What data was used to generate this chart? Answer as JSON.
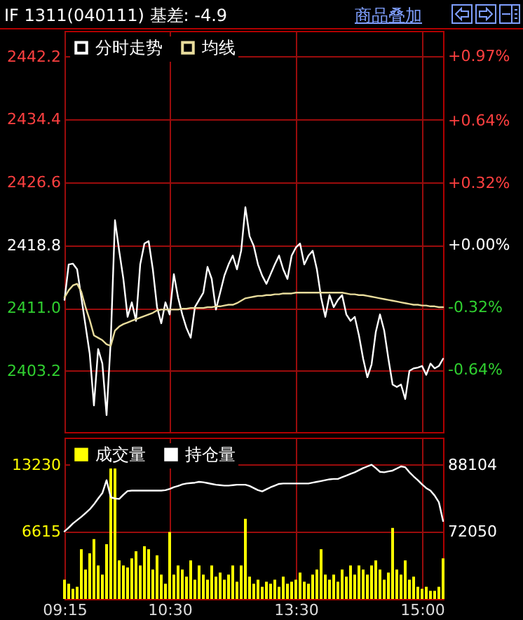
{
  "chart_data": [
    {
      "type": "line",
      "title": "IF 1311(040111) 基差: -4.9",
      "annotations": [
        "商品叠加"
      ],
      "legend": "top left",
      "tick_labels": "y",
      "grid": true,
      "categories": [
        null,
        null,
        null,
        null,
        null,
        null,
        null,
        null,
        null,
        null,
        null,
        null,
        null,
        null,
        null,
        null,
        null,
        null,
        null,
        null,
        null,
        null,
        null,
        null,
        null,
        null,
        null,
        null,
        null,
        null,
        null,
        null,
        null,
        null,
        null,
        null,
        null,
        null,
        null,
        null,
        null,
        null,
        null,
        null,
        null,
        null,
        null,
        null,
        null,
        null,
        null,
        null,
        null,
        null,
        null,
        null,
        null,
        null,
        null,
        null,
        null,
        null,
        null,
        null,
        null,
        null,
        null,
        null,
        null,
        null,
        null,
        null,
        null,
        null,
        null,
        null,
        null,
        null,
        null,
        null,
        null,
        null,
        null,
        null,
        null,
        null,
        null,
        null,
        null,
        null,
        null
      ],
      "ylim": [
        2395.6,
        2445.4
      ],
      "yticks": [
        2442.2,
        2434.4,
        2426.6,
        2418.8,
        {
          "value": 2411,
          "label": "2411.0"
        },
        2403.2
      ],
      "y2lim": [
        -0.96,
        1.1
      ],
      "y2ticks": [
        {
          "value": 0.97,
          "label": "+0.97%"
        },
        {
          "value": 0.64,
          "label": "+0.64%"
        },
        {
          "value": 0.32,
          "label": "+0.32%"
        },
        {
          "value": 0,
          "label": "+0.00%"
        },
        {
          "value": -0.32,
          "label": "-0.32%"
        },
        {
          "value": -0.64,
          "label": "-0.64%"
        }
      ],
      "series": [
        {
          "name": "分时走势",
          "color": "#ffffff",
          "values": [
            2412.0,
            2416.4,
            2416.5,
            2415.8,
            2412.3,
            2408.8,
            2405.3,
            2398.9,
            2405.9,
            2404.1,
            2397.7,
            2407.0,
            2421.9,
            2418.1,
            2414.6,
            2409.9,
            2411.7,
            2409.4,
            2416.4,
            2419.0,
            2419.3,
            2415.8,
            2411.1,
            2409.1,
            2411.7,
            2410.2,
            2415.2,
            2412.3,
            2410.2,
            2408.5,
            2407.3,
            2411.1,
            2412.0,
            2412.9,
            2416.1,
            2414.6,
            2410.8,
            2412.9,
            2415.0,
            2416.4,
            2417.5,
            2415.8,
            2418.1,
            2423.5,
            2419.9,
            2418.7,
            2416.4,
            2415.0,
            2414.0,
            2415.2,
            2416.4,
            2417.5,
            2415.8,
            2414.6,
            2417.5,
            2418.5,
            2419.0,
            2416.4,
            2417.5,
            2418.1,
            2415.8,
            2412.3,
            2409.9,
            2412.6,
            2411.1,
            2412.0,
            2412.6,
            2410.2,
            2409.4,
            2409.9,
            2407.6,
            2404.7,
            2402.4,
            2404.0,
            2408.0,
            2410.2,
            2408.2,
            2404.7,
            2401.5,
            2401.2,
            2401.5,
            2399.7,
            2403.2,
            2403.5,
            2403.6,
            2403.8,
            2402.7,
            2404.1,
            2403.5,
            2403.8,
            2404.7
          ]
        },
        {
          "name": "均线",
          "color": "#e8dc9c",
          "values": [
            2412.3,
            2413.2,
            2413.8,
            2414.0,
            2413.0,
            2411.1,
            2409.5,
            2407.6,
            2407.3,
            2407.0,
            2406.5,
            2406.3,
            2408.2,
            2408.7,
            2409.0,
            2409.2,
            2409.4,
            2409.6,
            2409.8,
            2410.0,
            2410.2,
            2410.4,
            2410.7,
            2410.8,
            2410.8,
            2410.8,
            2410.8,
            2410.8,
            2410.9,
            2410.9,
            2411.0,
            2411.0,
            2411.0,
            2411.0,
            2411.1,
            2411.1,
            2411.2,
            2411.2,
            2411.3,
            2411.4,
            2411.4,
            2411.6,
            2411.9,
            2412.2,
            2412.3,
            2412.4,
            2412.5,
            2412.5,
            2412.6,
            2412.6,
            2412.7,
            2412.7,
            2412.8,
            2412.8,
            2412.8,
            2412.9,
            2412.9,
            2412.9,
            2412.9,
            2412.9,
            2412.9,
            2412.9,
            2412.9,
            2412.9,
            2412.9,
            2412.9,
            2412.9,
            2412.8,
            2412.7,
            2412.7,
            2412.6,
            2412.6,
            2412.5,
            2412.4,
            2412.3,
            2412.2,
            2412.1,
            2412.0,
            2411.9,
            2411.8,
            2411.7,
            2411.6,
            2411.5,
            2411.4,
            2411.4,
            2411.3,
            2411.3,
            2411.2,
            2411.2,
            2411.1,
            2411.1
          ]
        }
      ]
    },
    {
      "type": "bar",
      "legend": "top left",
      "grid": true,
      "categories": [
        "09:15",
        null,
        null,
        null,
        null,
        null,
        null,
        null,
        null,
        null,
        null,
        null,
        null,
        null,
        null,
        null,
        null,
        null,
        null,
        null,
        null,
        null,
        null,
        null,
        null,
        "10:30",
        null,
        null,
        null,
        null,
        null,
        null,
        null,
        null,
        null,
        null,
        null,
        null,
        null,
        null,
        null,
        null,
        null,
        null,
        null,
        null,
        null,
        null,
        null,
        null,
        null,
        null,
        null,
        null,
        null,
        "13:30",
        null,
        null,
        null,
        null,
        null,
        null,
        null,
        null,
        null,
        null,
        null,
        null,
        null,
        null,
        null,
        null,
        null,
        null,
        null,
        null,
        null,
        null,
        null,
        null,
        null,
        null,
        null,
        null,
        null,
        "15:00",
        null,
        null,
        null,
        null,
        null
      ],
      "ylim": [
        0,
        15900
      ],
      "yticks": [
        6615,
        13230
      ],
      "y2lim": [
        55900,
        94600
      ],
      "y2ticks": [
        72050,
        88104
      ],
      "series": [
        {
          "name": "成交量",
          "type": "bar",
          "color": "#ffff00",
          "values": [
            1900,
            1500,
            1000,
            1200,
            4900,
            2900,
            4500,
            5900,
            3300,
            2400,
            5400,
            13000,
            13000,
            3800,
            3300,
            3100,
            4000,
            4700,
            3300,
            5200,
            4900,
            2900,
            4300,
            2400,
            1500,
            6600,
            2400,
            3300,
            2900,
            2200,
            3800,
            1900,
            3300,
            2400,
            1900,
            3300,
            2200,
            2600,
            1900,
            2400,
            3300,
            1700,
            3300,
            7900,
            2200,
            1500,
            1900,
            1200,
            1700,
            1500,
            1900,
            1200,
            2200,
            1500,
            1700,
            1900,
            2600,
            1700,
            1500,
            2400,
            2900,
            4900,
            2400,
            1900,
            2400,
            1700,
            2900,
            2200,
            3300,
            2400,
            3300,
            2900,
            2400,
            3300,
            3800,
            2900,
            1900,
            2600,
            7000,
            2900,
            2400,
            3800,
            1900,
            2200,
            1200,
            1000,
            1200,
            800,
            800,
            1200,
            4000
          ]
        },
        {
          "name": "持仓量",
          "type": "line",
          "axis": "y2",
          "color": "#ffffff",
          "values": [
            72100,
            73000,
            74000,
            74800,
            75600,
            76500,
            77400,
            78600,
            80000,
            81300,
            84400,
            80300,
            80000,
            79900,
            80900,
            81800,
            81900,
            81900,
            81900,
            81900,
            81900,
            81900,
            81900,
            81900,
            82000,
            82300,
            82700,
            83000,
            83400,
            83600,
            83700,
            83800,
            84000,
            83900,
            83700,
            83500,
            83300,
            83200,
            83100,
            83100,
            83200,
            83300,
            83300,
            83300,
            83000,
            82500,
            82000,
            81700,
            82200,
            82700,
            83100,
            83500,
            83600,
            83600,
            83600,
            83600,
            83600,
            83600,
            83600,
            83800,
            84000,
            84200,
            84400,
            84600,
            84700,
            84700,
            85100,
            85500,
            85900,
            86300,
            86800,
            87300,
            87700,
            88100,
            87300,
            86400,
            86300,
            86500,
            86700,
            87200,
            87700,
            87500,
            86300,
            85300,
            84400,
            83400,
            82500,
            81900,
            80700,
            79100,
            74600
          ]
        }
      ]
    }
  ]
}
